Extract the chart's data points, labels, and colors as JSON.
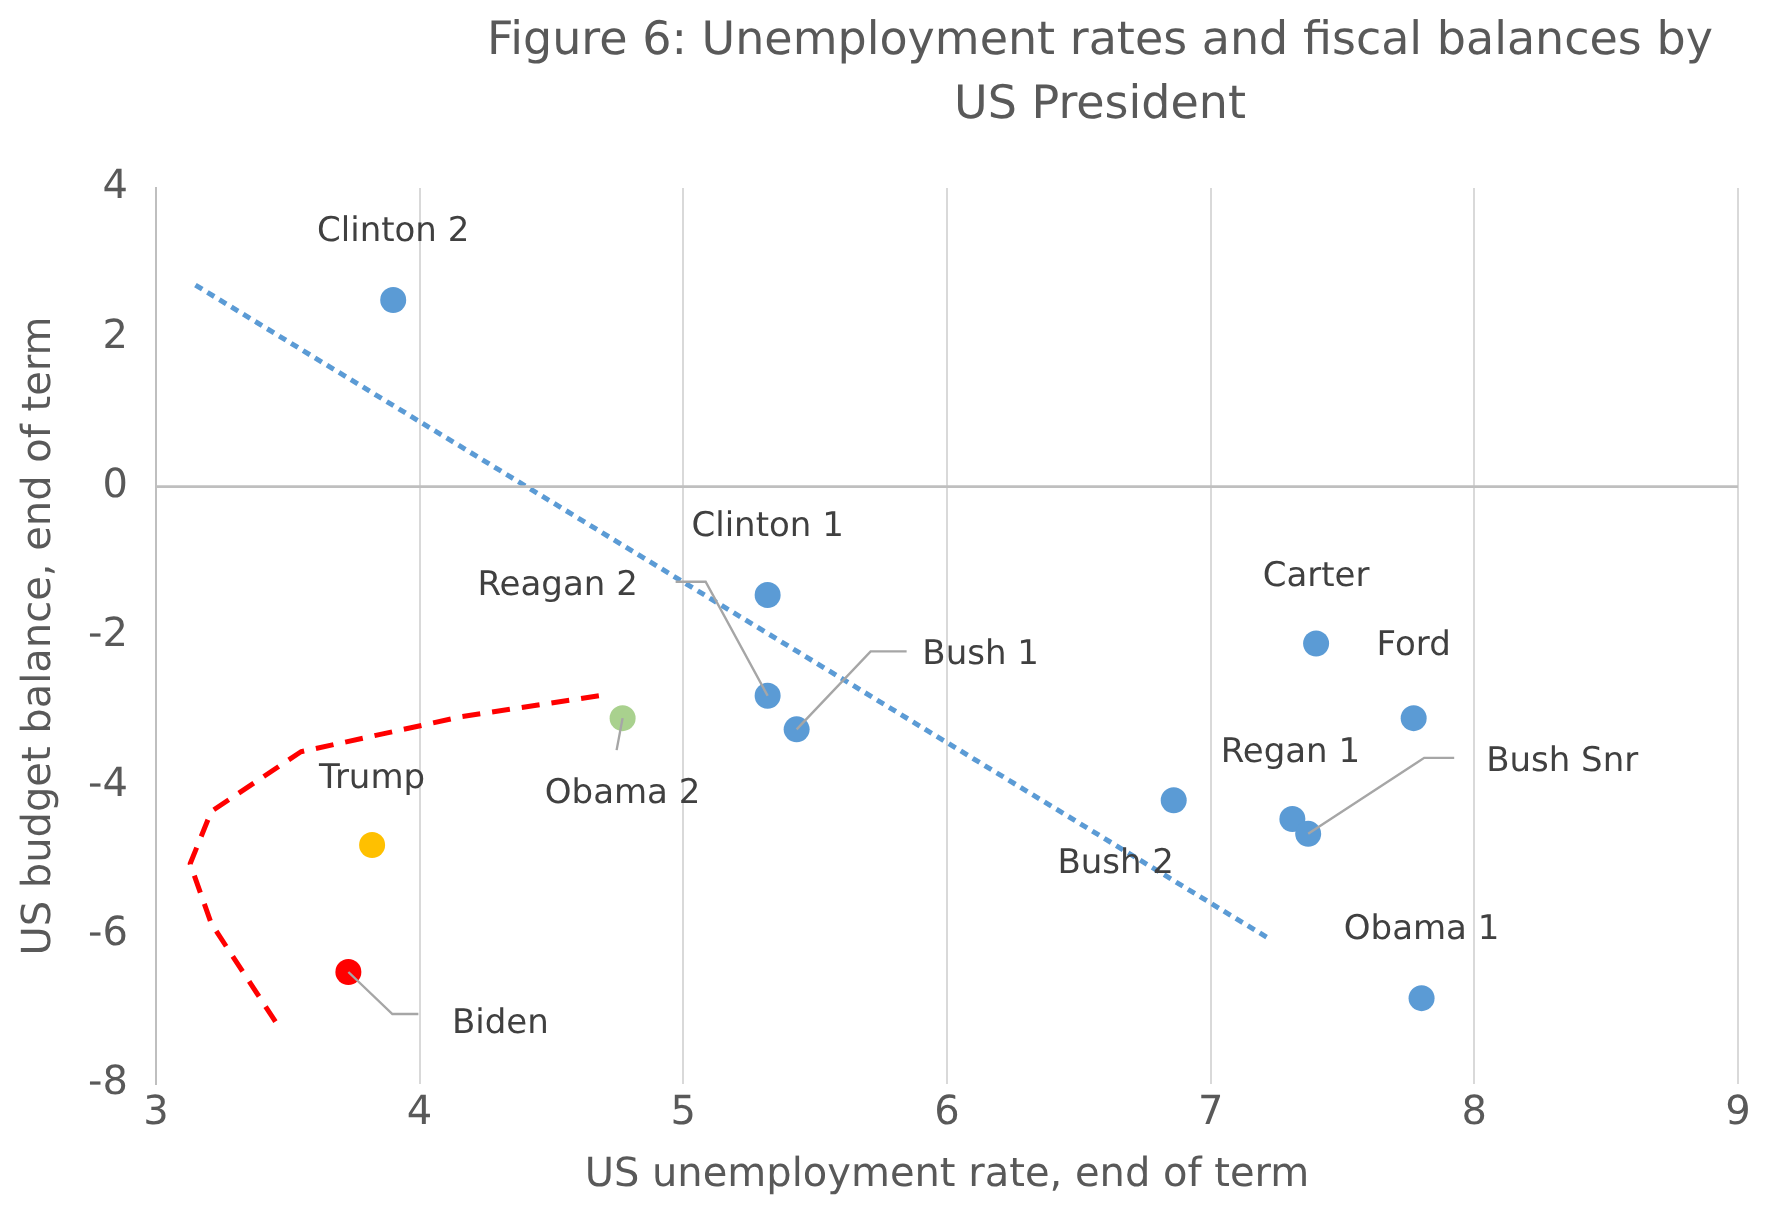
{
  "chart_data": {
    "type": "scatter",
    "title": "Figure 6: Unemployment rates and fiscal balances by US President",
    "xlabel": "US unemployment rate, end of term",
    "ylabel": "US budget balance, end of term",
    "xlim": [
      3,
      9
    ],
    "xticks": [
      3,
      4,
      5,
      6,
      7,
      8,
      9
    ],
    "ylim": [
      -8,
      4
    ],
    "yticks": [
      -8,
      -6,
      -4,
      -2,
      0,
      2,
      4
    ],
    "grid": "x",
    "legend": false,
    "marker": "circle",
    "ref_lines": [
      {
        "axis": "y",
        "value": 0,
        "color": "#bfbfbf"
      }
    ],
    "series": [
      {
        "x": [
          3.9,
          5.32,
          5.32,
          5.43,
          4.77,
          3.82,
          3.73,
          7.4,
          7.77,
          6.86,
          7.31,
          7.37,
          7.8
        ],
        "values": [
          2.5,
          -1.45,
          -2.8,
          -3.25,
          -3.1,
          -4.8,
          -6.5,
          -2.1,
          -3.1,
          -4.2,
          -4.45,
          -4.65,
          -6.85
        ],
        "colors": [
          "#5b9bd5",
          "#5b9bd5",
          "#5b9bd5",
          "#5b9bd5",
          "#a9d18e",
          "#ffc000",
          "#ff0000",
          "#5b9bd5",
          "#5b9bd5",
          "#5b9bd5",
          "#5b9bd5",
          "#5b9bd5",
          "#5b9bd5"
        ],
        "value_labels": [
          "Clinton 2",
          "Clinton 1",
          "Reagan 2",
          "Bush 1",
          "Obama 2",
          "Trump",
          "Biden",
          "Carter",
          "Ford",
          "Bush 2",
          "Regan 1",
          "Bush Snr",
          "Obama 1"
        ]
      },
      {
        "type": "line",
        "color": "#5b9bd5",
        "line_style": "dotted",
        "marker": "none",
        "x": [
          3.15,
          7.22
        ],
        "values": [
          2.7,
          -6.05
        ]
      },
      {
        "type": "line",
        "color": "#ff0000",
        "line_style": "dashed",
        "marker": "none",
        "x": [
          4.68,
          4.16,
          3.55,
          3.21,
          3.13,
          3.21,
          3.46
        ],
        "values": [
          -2.8,
          -3.08,
          -3.55,
          -4.35,
          -5.05,
          -5.85,
          -7.2
        ]
      }
    ]
  }
}
